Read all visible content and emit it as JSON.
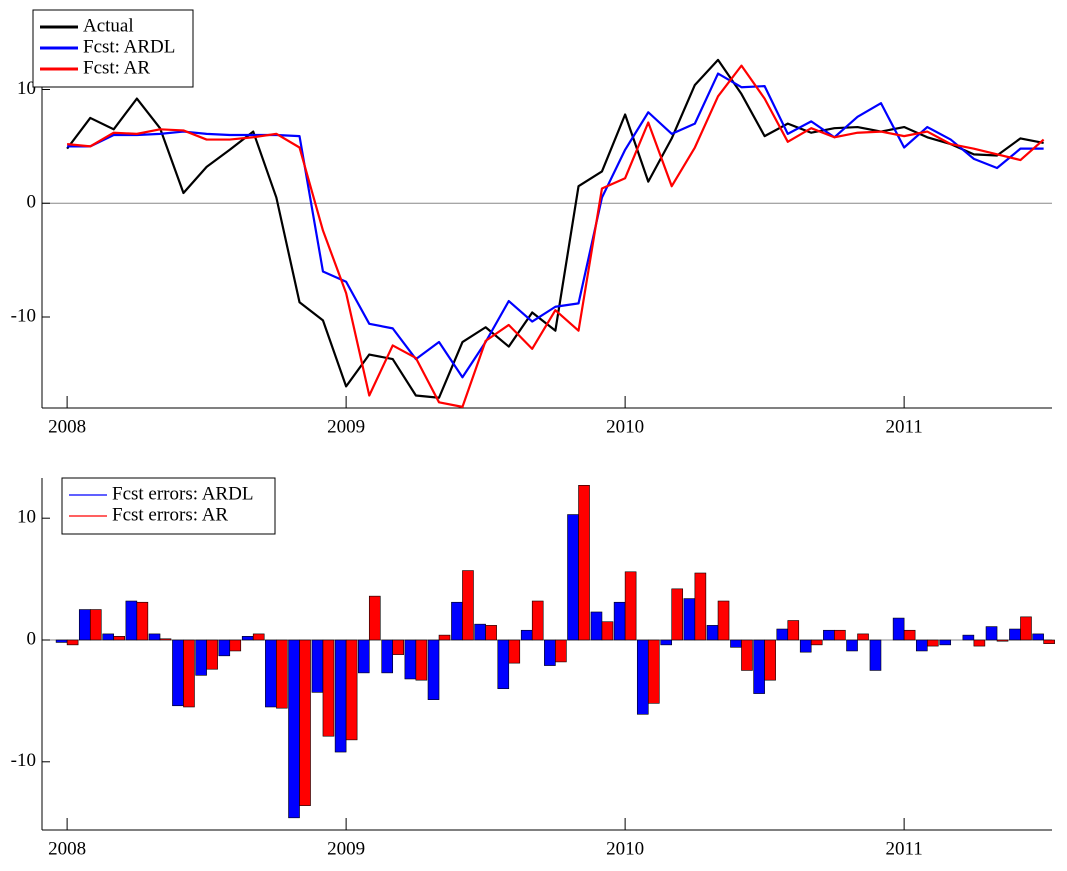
{
  "chart_data": [
    {
      "type": "line",
      "x": [
        2008,
        2008.083,
        2008.167,
        2008.25,
        2008.333,
        2008.417,
        2008.5,
        2008.583,
        2008.667,
        2008.75,
        2008.833,
        2008.917,
        2009,
        2009.083,
        2009.167,
        2009.25,
        2009.333,
        2009.417,
        2009.5,
        2009.583,
        2009.667,
        2009.75,
        2009.833,
        2009.917,
        2010,
        2010.083,
        2010.167,
        2010.25,
        2010.333,
        2010.417,
        2010.5,
        2010.583,
        2010.667,
        2010.75,
        2010.833,
        2010.917,
        2011,
        2011.083,
        2011.167,
        2011.25,
        2011.333,
        2011.417,
        2011.5
      ],
      "series": [
        {
          "name": "Actual",
          "color": "#000000",
          "values": [
            4.8,
            7.5,
            6.5,
            9.2,
            6.6,
            0.9,
            3.2,
            4.7,
            6.3,
            0.5,
            -8.7,
            -10.3,
            -16.1,
            -13.3,
            -13.7,
            -16.9,
            -17.1,
            -12.2,
            -10.9,
            -12.6,
            -9.6,
            -11.2,
            1.5,
            2.8,
            7.8,
            1.9,
            5.7,
            10.4,
            12.6,
            9.6,
            5.9,
            7.0,
            6.2,
            6.6,
            6.7,
            6.3,
            6.7,
            5.8,
            5.2,
            4.3,
            4.2,
            5.7,
            5.3
          ]
        },
        {
          "name": "Fcst: ARDL",
          "color": "#0000ff",
          "values": [
            5.0,
            5.0,
            6.0,
            6.0,
            6.1,
            6.3,
            6.1,
            6.0,
            6.0,
            6.0,
            5.9,
            -6.0,
            -6.9,
            -10.6,
            -11.0,
            -13.7,
            -12.2,
            -15.3,
            -12.2,
            -8.6,
            -10.4,
            -9.1,
            -8.8,
            0.5,
            4.7,
            8.0,
            6.1,
            7.0,
            11.4,
            10.2,
            10.3,
            6.1,
            7.2,
            5.8,
            7.6,
            8.8,
            4.9,
            6.7,
            5.6,
            3.9,
            3.1,
            4.8,
            4.8
          ]
        },
        {
          "name": "Fcst: AR",
          "color": "#ff0000",
          "values": [
            5.2,
            5.0,
            6.2,
            6.1,
            6.5,
            6.4,
            5.6,
            5.6,
            5.8,
            6.1,
            4.9,
            -2.4,
            -7.9,
            -16.9,
            -12.5,
            -13.6,
            -17.5,
            -17.9,
            -12.1,
            -10.7,
            -12.8,
            -9.4,
            -11.2,
            1.3,
            2.2,
            7.1,
            1.5,
            4.9,
            9.4,
            12.1,
            9.2,
            5.4,
            6.6,
            5.8,
            6.2,
            6.3,
            5.9,
            6.3,
            5.2,
            4.8,
            4.3,
            3.8,
            5.6
          ]
        }
      ],
      "xlim": [
        2007.91,
        2011.53
      ],
      "xticks": [
        2008,
        2009,
        2010,
        2011
      ],
      "ylim": [
        -18,
        14
      ],
      "yticks": [
        -10,
        0,
        10
      ],
      "legend": "upper left"
    },
    {
      "type": "bar",
      "x": [
        2008,
        2008.083,
        2008.167,
        2008.25,
        2008.333,
        2008.417,
        2008.5,
        2008.583,
        2008.667,
        2008.75,
        2008.833,
        2008.917,
        2009,
        2009.083,
        2009.167,
        2009.25,
        2009.333,
        2009.417,
        2009.5,
        2009.583,
        2009.667,
        2009.75,
        2009.833,
        2009.917,
        2010,
        2010.083,
        2010.167,
        2010.25,
        2010.333,
        2010.417,
        2010.5,
        2010.583,
        2010.667,
        2010.75,
        2010.833,
        2010.917,
        2011,
        2011.083,
        2011.167,
        2011.25,
        2011.333,
        2011.417,
        2011.5
      ],
      "series": [
        {
          "name": "Fcst errors: ARDL",
          "color": "#0000ff",
          "values": [
            -0.2,
            2.5,
            0.5,
            3.2,
            0.5,
            -5.4,
            -2.9,
            -1.3,
            0.3,
            -5.5,
            -14.6,
            -4.3,
            -9.2,
            -2.7,
            -2.7,
            -3.2,
            -4.9,
            3.1,
            1.3,
            -4.0,
            0.8,
            -2.1,
            10.3,
            2.3,
            3.1,
            -6.1,
            -0.4,
            3.4,
            1.2,
            -0.6,
            -4.4,
            0.9,
            -1.0,
            0.8,
            -0.9,
            -2.5,
            1.8,
            -0.9,
            -0.4,
            0.4,
            1.1,
            0.9,
            0.5
          ]
        },
        {
          "name": "Fcst errors: AR",
          "color": "#ff0000",
          "values": [
            -0.4,
            2.5,
            0.3,
            3.1,
            0.1,
            -5.5,
            -2.4,
            -0.9,
            0.5,
            -5.6,
            -13.6,
            -7.9,
            -8.2,
            3.6,
            -1.2,
            -3.3,
            0.4,
            5.7,
            1.2,
            -1.9,
            3.2,
            -1.8,
            12.7,
            1.5,
            5.6,
            -5.2,
            4.2,
            5.5,
            3.2,
            -2.5,
            -3.3,
            1.6,
            -0.4,
            0.8,
            0.5,
            0.0,
            0.8,
            -0.5,
            0.0,
            -0.5,
            -0.1,
            1.9,
            -0.3
          ]
        }
      ],
      "xlim": [
        2007.91,
        2011.53
      ],
      "xticks": [
        2008,
        2009,
        2010,
        2011
      ],
      "ylim": [
        -15.6,
        13.3
      ],
      "yticks": [
        -10,
        0,
        10
      ],
      "legend": "upper left"
    }
  ]
}
